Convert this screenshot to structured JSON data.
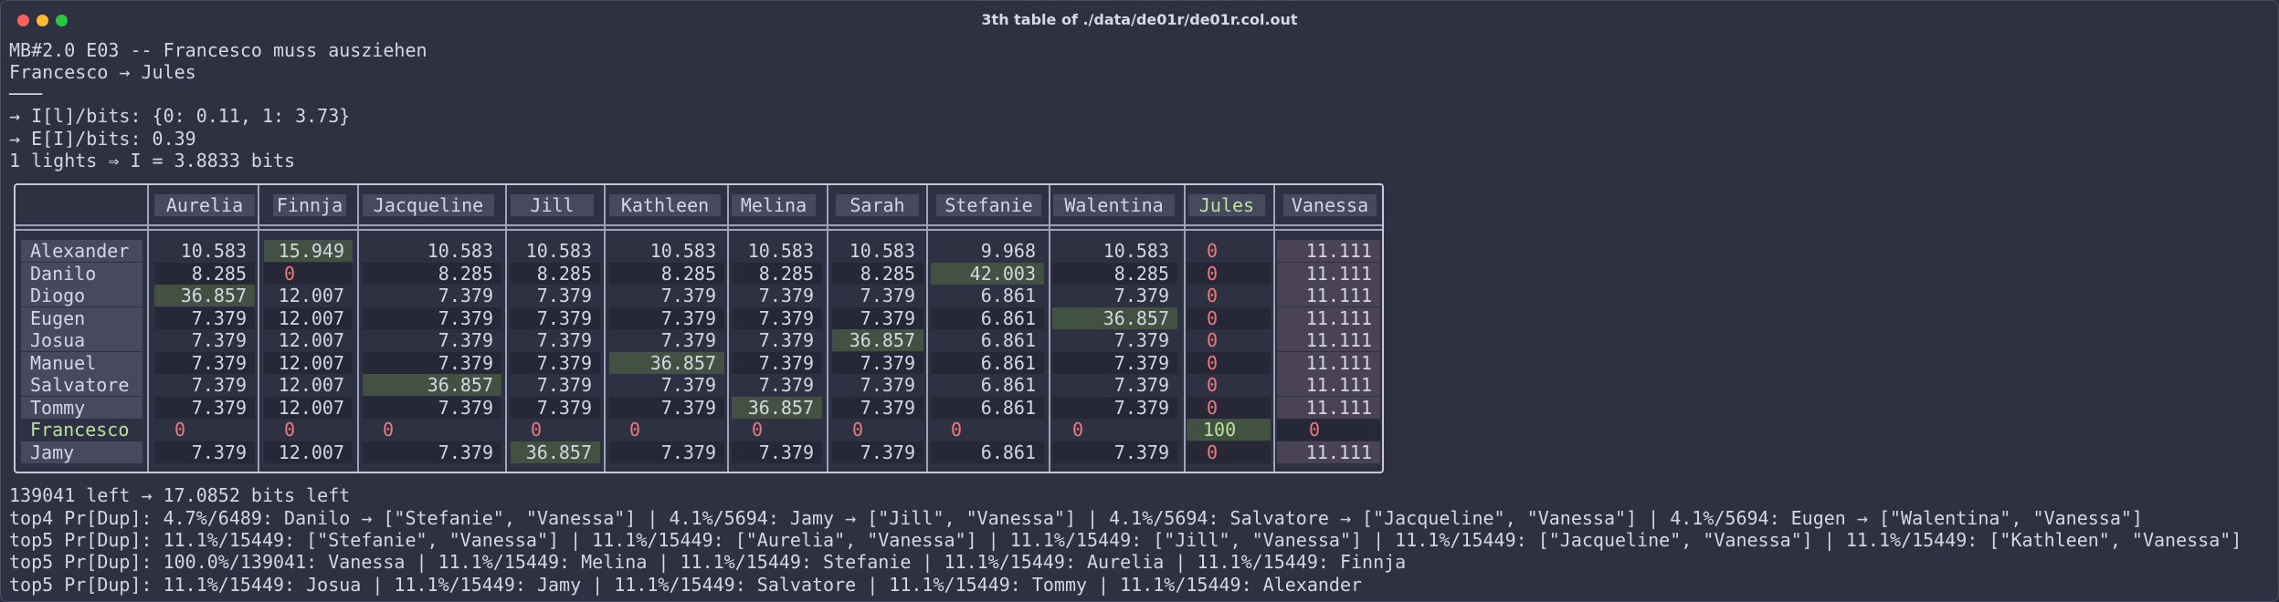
{
  "window": {
    "title": "3th table of ./data/de01r/de01r.col.out"
  },
  "header": {
    "lines": [
      "MB#2.0 E03 -- Francesco muss ausziehen",
      "Francesco → Jules",
      "───",
      "→ I[l]/bits: {0: 0.11, 1: 3.73}",
      "→ E[I]/bits: 0.39",
      "1 lights ⇒ I = 3.8833 bits"
    ]
  },
  "table": {
    "columns": [
      "Aurelia",
      "Finnja",
      "Jacqueline",
      "Jill",
      "Kathleen",
      "Melina",
      "Sarah",
      "Stefanie",
      "Walentina",
      "Jules",
      "Vanessa"
    ],
    "highlight_column": "Jules",
    "rows": [
      {
        "name": "Alexander",
        "values": [
          "10.583",
          "15.949",
          "10.583",
          "10.583",
          "10.583",
          "10.583",
          "10.583",
          "9.968",
          "10.583",
          "0",
          "11.111"
        ],
        "top": [
          1
        ]
      },
      {
        "name": "Danilo",
        "values": [
          "8.285",
          "0",
          "8.285",
          "8.285",
          "8.285",
          "8.285",
          "8.285",
          "42.003",
          "8.285",
          "0",
          "11.111"
        ],
        "top": [
          7
        ]
      },
      {
        "name": "Diogo",
        "values": [
          "36.857",
          "12.007",
          "7.379",
          "7.379",
          "7.379",
          "7.379",
          "7.379",
          "6.861",
          "7.379",
          "0",
          "11.111"
        ],
        "top": [
          0
        ]
      },
      {
        "name": "Eugen",
        "values": [
          "7.379",
          "12.007",
          "7.379",
          "7.379",
          "7.379",
          "7.379",
          "7.379",
          "6.861",
          "36.857",
          "0",
          "11.111"
        ],
        "top": [
          8
        ]
      },
      {
        "name": "Josua",
        "values": [
          "7.379",
          "12.007",
          "7.379",
          "7.379",
          "7.379",
          "7.379",
          "36.857",
          "6.861",
          "7.379",
          "0",
          "11.111"
        ],
        "top": [
          6
        ]
      },
      {
        "name": "Manuel",
        "values": [
          "7.379",
          "12.007",
          "7.379",
          "7.379",
          "36.857",
          "7.379",
          "7.379",
          "6.861",
          "7.379",
          "0",
          "11.111"
        ],
        "top": [
          4
        ]
      },
      {
        "name": "Salvatore",
        "values": [
          "7.379",
          "12.007",
          "36.857",
          "7.379",
          "7.379",
          "7.379",
          "7.379",
          "6.861",
          "7.379",
          "0",
          "11.111"
        ],
        "top": [
          2
        ]
      },
      {
        "name": "Tommy",
        "values": [
          "7.379",
          "12.007",
          "7.379",
          "7.379",
          "7.379",
          "36.857",
          "7.379",
          "6.861",
          "7.379",
          "0",
          "11.111"
        ],
        "top": [
          5
        ]
      },
      {
        "name": "Francesco",
        "values": [
          "0",
          "0",
          "0",
          "0",
          "0",
          "0",
          "0",
          "0",
          "0",
          "100",
          "0"
        ],
        "top": [
          9
        ],
        "highlight": true
      },
      {
        "name": "Jamy",
        "values": [
          "7.379",
          "12.007",
          "7.379",
          "36.857",
          "7.379",
          "7.379",
          "7.379",
          "6.861",
          "7.379",
          "0",
          "11.111"
        ],
        "top": [
          3
        ]
      }
    ]
  },
  "footer": {
    "lines": [
      "139041 left → 17.0852 bits left",
      "top4 Pr[Dup]: 4.7%/6489: Danilo → [\"Stefanie\", \"Vanessa\"] | 4.1%/5694: Jamy → [\"Jill\", \"Vanessa\"] | 4.1%/5694: Salvatore → [\"Jacqueline\", \"Vanessa\"] | 4.1%/5694: Eugen → [\"Walentina\", \"Vanessa\"]",
      "top5 Pr[Dup]: 11.1%/15449: [\"Stefanie\", \"Vanessa\"] | 11.1%/15449: [\"Aurelia\", \"Vanessa\"] | 11.1%/15449: [\"Jill\", \"Vanessa\"] | 11.1%/15449: [\"Jacqueline\", \"Vanessa\"] | 11.1%/15449: [\"Kathleen\", \"Vanessa\"]",
      "top5 Pr[Dup]: 100.0%/139041: Vanessa | 11.1%/15449: Melina | 11.1%/15449: Stefanie | 11.1%/15449: Aurelia | 11.1%/15449: Finnja",
      "top5 Pr[Dup]: 11.1%/15449: Josua | 11.1%/15449: Jamy | 11.1%/15449: Salvatore | 11.1%/15449: Tommy | 11.1%/15449: Alexander"
    ]
  }
}
